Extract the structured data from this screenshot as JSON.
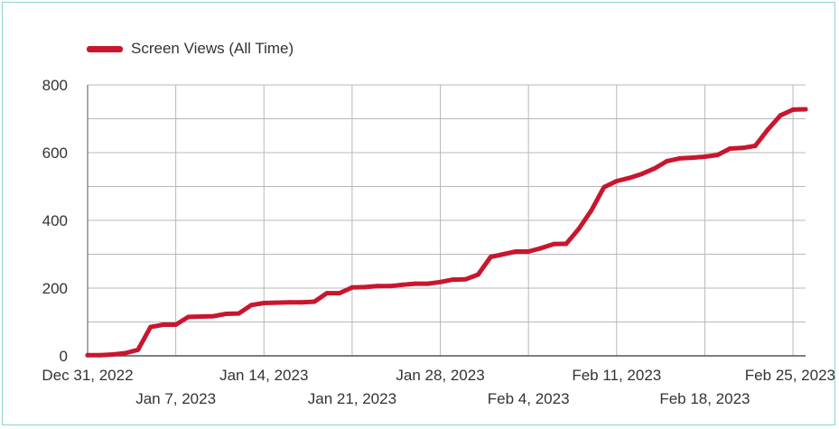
{
  "chart_data": {
    "type": "line",
    "title": "",
    "xlabel": "",
    "ylabel": "",
    "ylim": [
      0,
      800
    ],
    "yticks": [
      0,
      200,
      400,
      600,
      800
    ],
    "grid": true,
    "legend_position": "top-left",
    "x_tick_labels": [
      "Dec 31, 2022",
      "Jan 7, 2023",
      "Jan 14, 2023",
      "Jan 21, 2023",
      "Jan 28, 2023",
      "Feb 4, 2023",
      "Feb 11, 2023",
      "Feb 18, 2023",
      "Feb 25, 2023"
    ],
    "xlim": [
      "2022-12-31",
      "2023-02-26"
    ],
    "series": [
      {
        "name": "Screen Views (All Time)",
        "color": "#c8162f",
        "x": [
          "2022-12-31",
          "2023-01-01",
          "2023-01-02",
          "2023-01-03",
          "2023-01-04",
          "2023-01-05",
          "2023-01-06",
          "2023-01-07",
          "2023-01-08",
          "2023-01-09",
          "2023-01-10",
          "2023-01-11",
          "2023-01-12",
          "2023-01-13",
          "2023-01-14",
          "2023-01-15",
          "2023-01-16",
          "2023-01-17",
          "2023-01-18",
          "2023-01-19",
          "2023-01-20",
          "2023-01-21",
          "2023-01-22",
          "2023-01-23",
          "2023-01-24",
          "2023-01-25",
          "2023-01-26",
          "2023-01-27",
          "2023-01-28",
          "2023-01-29",
          "2023-01-30",
          "2023-01-31",
          "2023-02-01",
          "2023-02-02",
          "2023-02-03",
          "2023-02-04",
          "2023-02-05",
          "2023-02-06",
          "2023-02-07",
          "2023-02-08",
          "2023-02-09",
          "2023-02-10",
          "2023-02-11",
          "2023-02-12",
          "2023-02-13",
          "2023-02-14",
          "2023-02-15",
          "2023-02-16",
          "2023-02-17",
          "2023-02-18",
          "2023-02-19",
          "2023-02-20",
          "2023-02-21",
          "2023-02-22",
          "2023-02-23",
          "2023-02-24",
          "2023-02-25",
          "2023-02-26"
        ],
        "values": [
          2,
          2,
          4,
          8,
          18,
          85,
          92,
          92,
          115,
          116,
          117,
          124,
          125,
          150,
          156,
          157,
          158,
          158,
          160,
          185,
          185,
          202,
          203,
          206,
          206,
          210,
          213,
          213,
          218,
          225,
          226,
          240,
          292,
          300,
          308,
          308,
          318,
          330,
          331,
          375,
          430,
          498,
          516,
          525,
          537,
          553,
          575,
          583,
          585,
          588,
          593,
          612,
          614,
          620,
          668,
          710,
          727,
          728
        ]
      }
    ]
  }
}
